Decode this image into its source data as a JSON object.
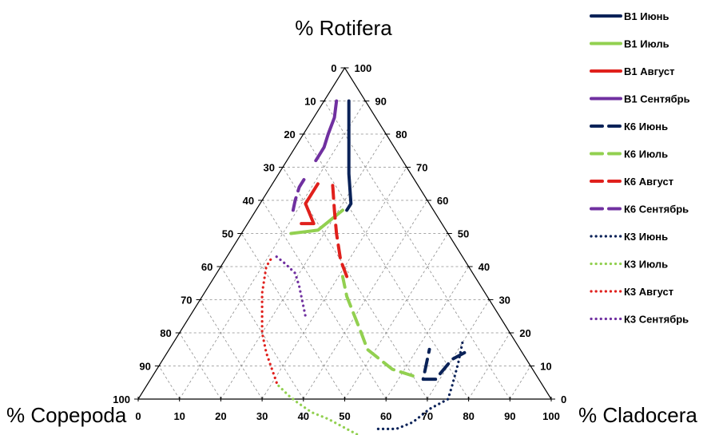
{
  "chart_data": {
    "type": "ternary-line",
    "axes": {
      "top": "% Rotifera",
      "left": "% Copepoda",
      "right": "% Cladocera"
    },
    "ticks": [
      0,
      10,
      20,
      30,
      40,
      50,
      60,
      70,
      80,
      90,
      100
    ],
    "units": "percent",
    "grid": true,
    "legend_position": "right",
    "series": [
      {
        "name": "В1 Июнь",
        "color": "#0a2258",
        "style": "solid",
        "points": [
          [
            4,
            6,
            90
          ],
          [
            10,
            12,
            78
          ],
          [
            15,
            17,
            68
          ],
          [
            19,
            22,
            59
          ],
          [
            21,
            22,
            57
          ]
        ]
      },
      {
        "name": "В1 Июль",
        "color": "#92d050",
        "style": "solid",
        "points": [
          [
            22,
            21,
            57
          ],
          [
            31,
            18,
            51
          ],
          [
            38,
            12,
            50
          ]
        ]
      },
      {
        "name": "В1 Август",
        "color": "#e0201c",
        "style": "solid",
        "points": [
          [
            34,
            13,
            53
          ],
          [
            33,
            14,
            53
          ],
          [
            31,
            16,
            53
          ],
          [
            30,
            11,
            59
          ],
          [
            24,
            11,
            65
          ]
        ]
      },
      {
        "name": "В1 Сентябрь",
        "color": "#7030a0",
        "style": "solid",
        "points": [
          [
            21,
            7,
            72
          ],
          [
            20,
            7,
            73
          ],
          [
            17,
            7,
            76
          ],
          [
            14,
            6,
            80
          ],
          [
            10,
            5,
            85
          ],
          [
            7,
            3,
            90
          ]
        ]
      },
      {
        "name": "К6 Июнь",
        "color": "#0a2258",
        "style": "dashed",
        "points": [
          [
            14,
            72,
            14
          ],
          [
            18,
            70,
            12
          ],
          [
            25,
            69,
            6
          ],
          [
            28,
            66,
            6
          ],
          [
            22,
            63,
            15
          ]
        ]
      },
      {
        "name": "К6 Июль",
        "color": "#92d050",
        "style": "dashed",
        "points": [
          [
            30,
            63,
            7
          ],
          [
            34,
            57,
            9
          ],
          [
            37,
            48,
            15
          ],
          [
            36,
            44,
            20
          ],
          [
            34,
            35,
            31
          ],
          [
            32,
            31,
            37
          ]
        ]
      },
      {
        "name": "К6 Август",
        "color": "#e0201c",
        "style": "dashed",
        "points": [
          [
            31,
            32,
            37
          ],
          [
            30,
            28,
            42
          ],
          [
            27,
            23,
            50
          ],
          [
            24,
            19,
            57
          ],
          [
            20,
            14,
            66
          ]
        ]
      },
      {
        "name": "К6 Сентябрь",
        "color": "#7030a0",
        "style": "dashed",
        "points": [
          [
            34,
            9,
            57
          ],
          [
            32,
            8,
            60
          ],
          [
            29,
            7,
            64
          ],
          [
            25,
            7,
            68
          ]
        ]
      },
      {
        "name": "К3 Июнь",
        "color": "#0a2258",
        "style": "dotted",
        "points": [
          [
            13,
            70,
            17
          ],
          [
            17,
            72,
            11
          ],
          [
            22,
            74,
            4
          ],
          [
            25,
            75,
            0
          ],
          [
            31,
            72,
            -3
          ],
          [
            37,
            70,
            -7
          ],
          [
            42,
            67,
            -9
          ],
          [
            47,
            62,
            -9
          ]
        ]
      },
      {
        "name": "К3 Июль",
        "color": "#92d050",
        "style": "dotted",
        "points": [
          [
            51,
            61,
            -12
          ],
          [
            54,
            55,
            -9
          ],
          [
            57,
            49,
            -6
          ],
          [
            60,
            44,
            -4
          ],
          [
            62,
            39,
            -1
          ],
          [
            63,
            36,
            1
          ],
          [
            64,
            32,
            4
          ]
        ]
      },
      {
        "name": "К3 Август",
        "color": "#e0201c",
        "style": "dotted",
        "points": [
          [
            64,
            31,
            5
          ],
          [
            62,
            24,
            14
          ],
          [
            60,
            20,
            20
          ],
          [
            57,
            17,
            26
          ],
          [
            54,
            14,
            32
          ],
          [
            49,
            11,
            40
          ],
          [
            46,
            11,
            43
          ]
        ]
      },
      {
        "name": "К3 Сентябрь",
        "color": "#7030a0",
        "style": "dotted",
        "points": [
          [
            45,
            12,
            43
          ],
          [
            44,
            15,
            41
          ],
          [
            43,
            19,
            38
          ],
          [
            44,
            22,
            34
          ],
          [
            46,
            26,
            28
          ],
          [
            47,
            28,
            25
          ]
        ]
      }
    ]
  }
}
